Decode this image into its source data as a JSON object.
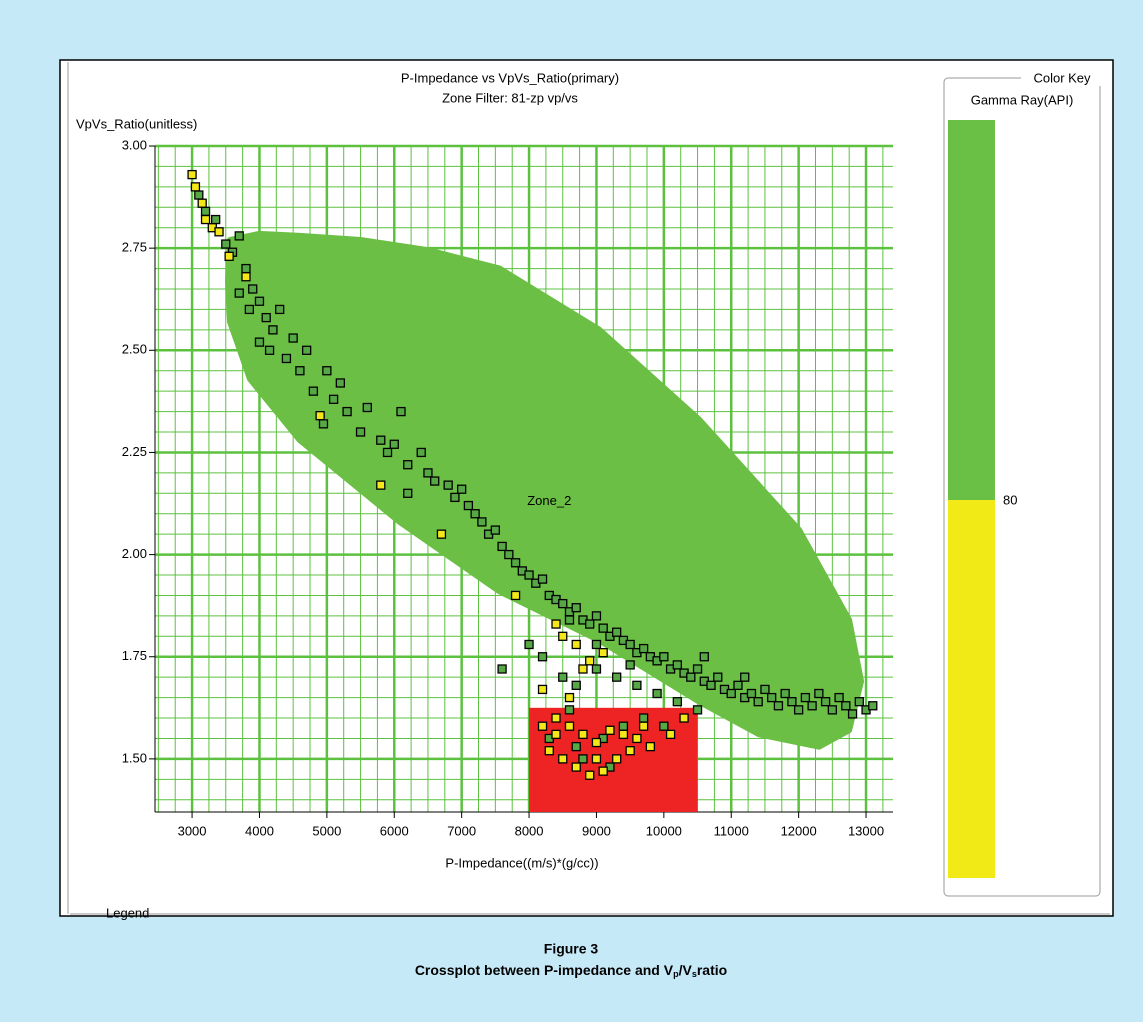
{
  "chart_data": {
    "type": "scatter",
    "title": "P-Impedance vs VpVs_Ratio(primary)",
    "subtitle": "Zone Filter: 81-zp vp/vs",
    "ylabel": "VpVs_Ratio(unitless)",
    "xlabel": "P-Impedance((m/s)*(g/cc))",
    "xlim": [
      2450,
      13400
    ],
    "ylim": [
      1.37,
      3.0
    ],
    "xticks": [
      3000,
      4000,
      5000,
      6000,
      7000,
      8000,
      9000,
      10000,
      11000,
      12000,
      13000
    ],
    "yticks": [
      {
        "value": 1.5,
        "label": "1.50"
      },
      {
        "value": 1.75,
        "label": "1.75"
      },
      {
        "value": 2.0,
        "label": "2.00"
      },
      {
        "value": 2.25,
        "label": "2.25"
      },
      {
        "value": 2.5,
        "label": "2.50"
      },
      {
        "value": 2.75,
        "label": "2.75"
      },
      {
        "value": 3.0,
        "label": "3.00"
      }
    ],
    "grid": true,
    "minor_grid": {
      "x": 250,
      "y": 0.05
    },
    "grid_color": "#5cc13f",
    "zone": {
      "name": "Zone_2",
      "color": "#6bbf45",
      "label_at": [
        8300,
        2.13
      ],
      "outline_x": [
        3563,
        4000,
        4600,
        5500,
        6500,
        7563,
        9044,
        10526,
        12007,
        12748,
        12926,
        12748,
        12304,
        11415,
        10526,
        9044,
        7563,
        6081,
        4600,
        3859,
        3563,
        3533
      ],
      "outline_y": [
        2.77,
        2.785,
        2.78,
        2.77,
        2.745,
        2.7,
        2.55,
        2.33,
        2.06,
        1.84,
        1.69,
        1.57,
        1.53,
        1.56,
        1.64,
        1.79,
        1.91,
        2.08,
        2.28,
        2.43,
        2.57,
        2.67
      ]
    },
    "box": {
      "color": "#ee2424",
      "x": [
        8000,
        10500
      ],
      "y": [
        1.37,
        1.625
      ]
    },
    "series": [
      {
        "color": "#56a845",
        "x": [
          3100,
          3200,
          3350,
          3500,
          3600,
          3700,
          3800,
          3900,
          3700,
          3850,
          4000,
          4100,
          4200,
          4300,
          4000,
          4150,
          4400,
          4500,
          4600,
          4700,
          4800,
          5000,
          5100,
          5200,
          5300,
          4950,
          5500,
          5600,
          5800,
          5900,
          6000,
          6100,
          6200,
          6400,
          6500,
          6600,
          6800,
          6900,
          7000,
          7100,
          6200,
          7200,
          7300,
          7400,
          7500,
          7600,
          7700,
          7800,
          7900,
          8000,
          8100,
          8200,
          8300,
          8400,
          8500,
          8600,
          8700,
          8800,
          8900,
          9000,
          9100,
          9200,
          9300,
          9400,
          9500,
          9600,
          9700,
          9800,
          9900,
          10000,
          10100,
          10200,
          10300,
          10400,
          10500,
          10600,
          10700,
          10800,
          10900,
          11000,
          11100,
          11200,
          11300,
          11400,
          11500,
          11600,
          11700,
          11800,
          11900,
          12000,
          12100,
          12200,
          12300,
          12400,
          12500,
          12600,
          12700,
          12800,
          12900,
          13000,
          13100,
          8200,
          8500,
          8700,
          9000,
          8600,
          9300,
          9600,
          9900,
          10200,
          10500,
          8000,
          7600,
          8300,
          8800,
          9100,
          9400,
          9700,
          10000,
          9200,
          8700,
          8600,
          9000,
          9500,
          10600,
          11200
        ],
        "values": [
          2.88,
          2.84,
          2.82,
          2.76,
          2.74,
          2.78,
          2.7,
          2.65,
          2.64,
          2.6,
          2.62,
          2.58,
          2.55,
          2.6,
          2.52,
          2.5,
          2.48,
          2.53,
          2.45,
          2.5,
          2.4,
          2.45,
          2.38,
          2.42,
          2.35,
          2.32,
          2.3,
          2.36,
          2.28,
          2.25,
          2.27,
          2.35,
          2.22,
          2.25,
          2.2,
          2.18,
          2.17,
          2.14,
          2.16,
          2.12,
          2.15,
          2.1,
          2.08,
          2.05,
          2.06,
          2.02,
          2.0,
          1.98,
          1.96,
          1.95,
          1.93,
          1.94,
          1.9,
          1.89,
          1.88,
          1.86,
          1.87,
          1.84,
          1.83,
          1.85,
          1.82,
          1.8,
          1.81,
          1.79,
          1.78,
          1.76,
          1.77,
          1.75,
          1.74,
          1.75,
          1.72,
          1.73,
          1.71,
          1.7,
          1.72,
          1.69,
          1.68,
          1.7,
          1.67,
          1.66,
          1.68,
          1.65,
          1.66,
          1.64,
          1.67,
          1.65,
          1.63,
          1.66,
          1.64,
          1.62,
          1.65,
          1.63,
          1.66,
          1.64,
          1.62,
          1.65,
          1.63,
          1.61,
          1.64,
          1.62,
          1.63,
          1.75,
          1.7,
          1.68,
          1.72,
          1.62,
          1.7,
          1.68,
          1.66,
          1.64,
          1.62,
          1.78,
          1.72,
          1.55,
          1.5,
          1.55,
          1.58,
          1.6,
          1.58,
          1.48,
          1.53,
          1.84,
          1.78,
          1.73,
          1.75,
          1.7
        ]
      },
      {
        "color": "#f4e81a",
        "x": [
          3000,
          3050,
          3150,
          3200,
          3300,
          3400,
          3550,
          3800,
          4900,
          5800,
          6700,
          7800,
          8400,
          8500,
          8700,
          9100,
          8900,
          8200,
          8400,
          8600,
          8800,
          9000,
          9200,
          9400,
          9600,
          9800,
          10100,
          8300,
          8500,
          8700,
          8900,
          9100,
          9300,
          9500,
          9000,
          8200,
          8400,
          9700,
          10300,
          8600,
          8800
        ],
        "values": [
          2.93,
          2.9,
          2.86,
          2.82,
          2.8,
          2.79,
          2.73,
          2.68,
          2.34,
          2.17,
          2.05,
          1.9,
          1.83,
          1.8,
          1.78,
          1.76,
          1.74,
          1.67,
          1.6,
          1.58,
          1.56,
          1.54,
          1.57,
          1.56,
          1.55,
          1.53,
          1.56,
          1.52,
          1.5,
          1.48,
          1.46,
          1.47,
          1.5,
          1.52,
          1.5,
          1.58,
          1.56,
          1.58,
          1.6,
          1.65,
          1.72
        ]
      }
    ],
    "colorbar": {
      "title": "Color Key",
      "label": "Gamma Ray(API)",
      "threshold": 80,
      "colors": [
        "#6abf45",
        "#f2ea16"
      ]
    },
    "legend_title": "Legend"
  },
  "caption": {
    "figure": "Figure 3",
    "parts": [
      "Crossplot between P-impedance and V",
      "p",
      "/V",
      "s",
      "ratio"
    ]
  }
}
